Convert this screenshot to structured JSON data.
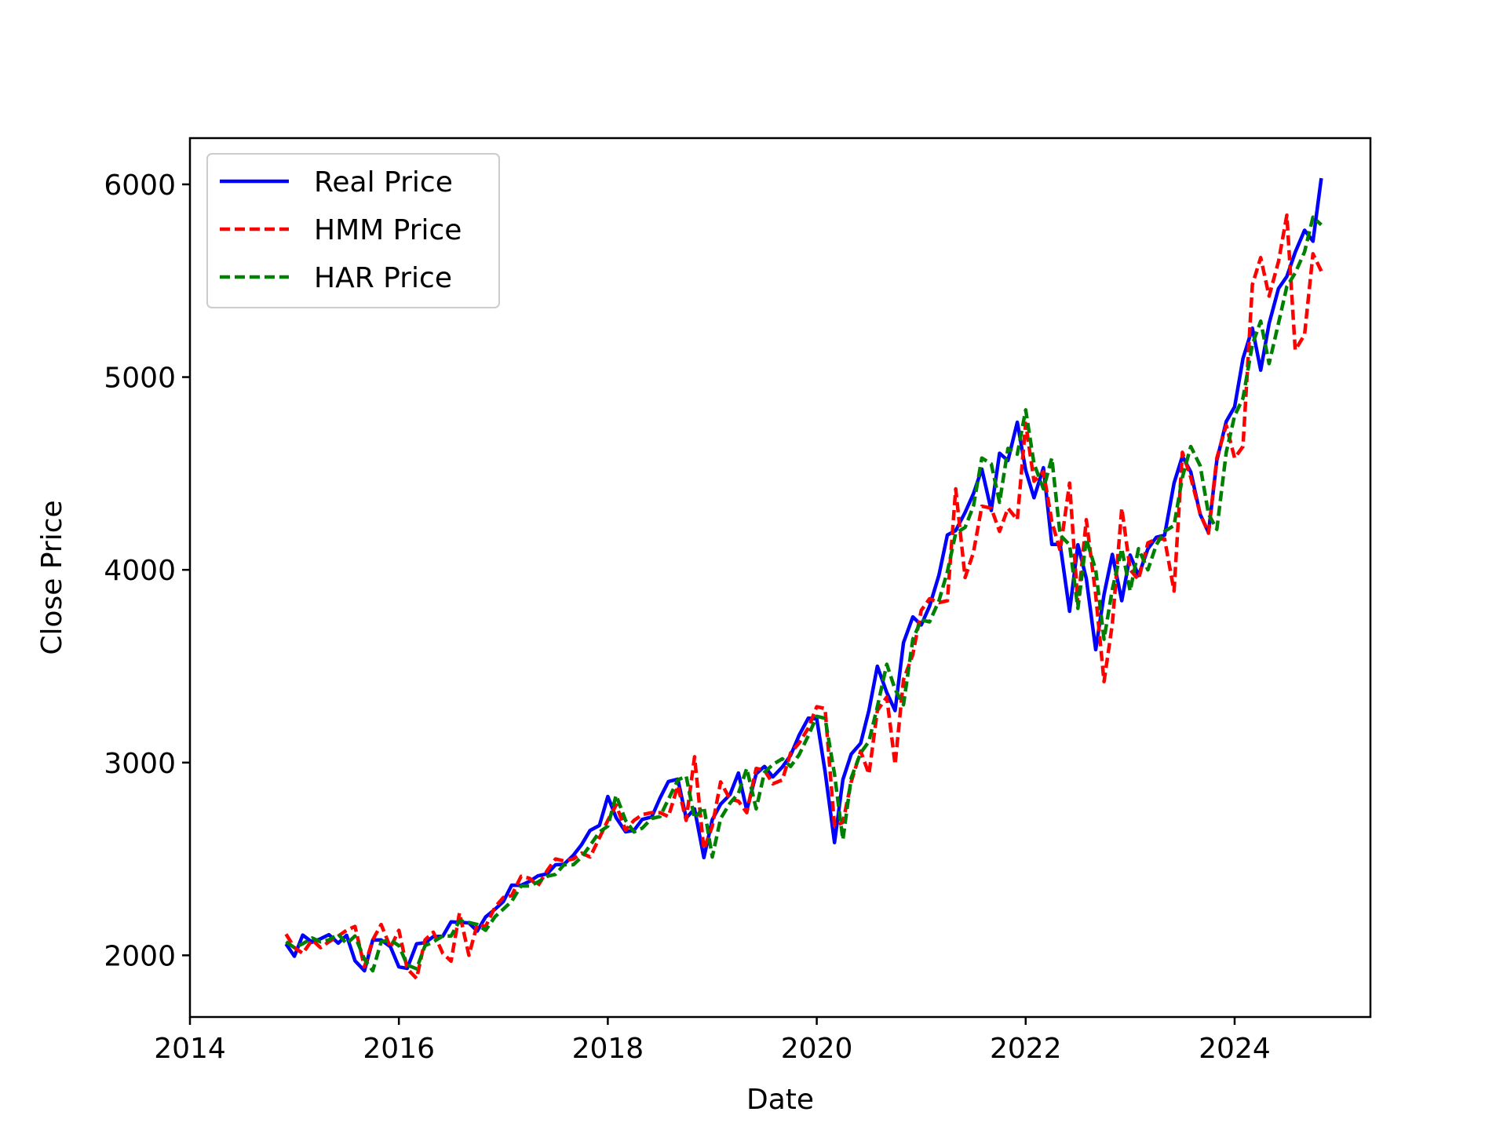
{
  "chart_data": {
    "type": "line",
    "title": "",
    "xlabel": "Date",
    "ylabel": "Close Price",
    "xlim": [
      2014.0,
      2025.3
    ],
    "ylim": [
      1680,
      6240
    ],
    "x_ticks": [
      2014,
      2016,
      2018,
      2020,
      2022,
      2024
    ],
    "y_ticks": [
      2000,
      3000,
      4000,
      5000,
      6000
    ],
    "grid": false,
    "legend": "upper-left",
    "x": [
      2014.92,
      2015.0,
      2015.08,
      2015.17,
      2015.25,
      2015.33,
      2015.42,
      2015.5,
      2015.58,
      2015.67,
      2015.75,
      2015.83,
      2015.92,
      2016.0,
      2016.08,
      2016.17,
      2016.25,
      2016.33,
      2016.42,
      2016.5,
      2016.58,
      2016.67,
      2016.75,
      2016.83,
      2016.92,
      2017.0,
      2017.08,
      2017.17,
      2017.25,
      2017.33,
      2017.42,
      2017.5,
      2017.58,
      2017.67,
      2017.75,
      2017.83,
      2017.92,
      2018.0,
      2018.08,
      2018.17,
      2018.25,
      2018.33,
      2018.42,
      2018.5,
      2018.58,
      2018.67,
      2018.75,
      2018.83,
      2018.92,
      2019.0,
      2019.08,
      2019.17,
      2019.25,
      2019.33,
      2019.42,
      2019.5,
      2019.58,
      2019.67,
      2019.75,
      2019.83,
      2019.92,
      2020.0,
      2020.08,
      2020.17,
      2020.25,
      2020.33,
      2020.42,
      2020.5,
      2020.58,
      2020.67,
      2020.75,
      2020.83,
      2020.92,
      2021.0,
      2021.08,
      2021.17,
      2021.25,
      2021.33,
      2021.42,
      2021.5,
      2021.58,
      2021.67,
      2021.75,
      2021.83,
      2021.92,
      2022.0,
      2022.08,
      2022.17,
      2022.25,
      2022.33,
      2022.42,
      2022.5,
      2022.58,
      2022.67,
      2022.75,
      2022.83,
      2022.92,
      2023.0,
      2023.08,
      2023.17,
      2023.25,
      2023.33,
      2023.42,
      2023.5,
      2023.58,
      2023.67,
      2023.75,
      2023.83,
      2023.92,
      2024.0,
      2024.08,
      2024.17,
      2024.25,
      2024.33,
      2024.42,
      2024.5,
      2024.58,
      2024.67,
      2024.75,
      2024.83
    ],
    "series": [
      {
        "name": "Real Price",
        "color": "#0000ff",
        "style": "solid",
        "values": [
          2059,
          1995,
          2105,
          2068,
          2086,
          2107,
          2063,
          2104,
          1972,
          1920,
          2079,
          2080,
          2044,
          1940,
          1932,
          2060,
          2065,
          2097,
          2099,
          2174,
          2171,
          2168,
          2126,
          2199,
          2239,
          2279,
          2364,
          2363,
          2384,
          2412,
          2423,
          2470,
          2472,
          2519,
          2575,
          2648,
          2674,
          2824,
          2714,
          2641,
          2648,
          2705,
          2718,
          2816,
          2902,
          2914,
          2712,
          2760,
          2507,
          2704,
          2784,
          2834,
          2946,
          2752,
          2942,
          2980,
          2926,
          2977,
          3038,
          3141,
          3231,
          3226,
          2954,
          2585,
          2912,
          3044,
          3100,
          3271,
          3500,
          3363,
          3270,
          3622,
          3756,
          3714,
          3811,
          3973,
          4181,
          4204,
          4298,
          4395,
          4523,
          4308,
          4605,
          4567,
          4766,
          4516,
          4374,
          4530,
          4132,
          4132,
          3785,
          4130,
          3955,
          3586,
          3872,
          4080,
          3840,
          4077,
          3970,
          4109,
          4169,
          4180,
          4450,
          4589,
          4508,
          4288,
          4194,
          4568,
          4770,
          4846,
          5096,
          5254,
          5036,
          5278,
          5460,
          5522,
          5648,
          5762,
          5705,
          6032
        ]
      },
      {
        "name": "HMM Price",
        "color": "#ff0000",
        "style": "dashed",
        "values": [
          2110,
          2040,
          2010,
          2080,
          2040,
          2070,
          2100,
          2130,
          2150,
          1940,
          2080,
          2160,
          2040,
          2130,
          1930,
          1880,
          2080,
          2120,
          2010,
          1970,
          2220,
          2000,
          2160,
          2150,
          2250,
          2300,
          2310,
          2410,
          2400,
          2360,
          2440,
          2500,
          2490,
          2500,
          2530,
          2510,
          2610,
          2700,
          2780,
          2650,
          2700,
          2730,
          2740,
          2740,
          2720,
          2880,
          2700,
          3030,
          2550,
          2670,
          2900,
          2810,
          2800,
          2740,
          2970,
          2960,
          2890,
          2910,
          3050,
          3100,
          3180,
          3290,
          3280,
          2670,
          2690,
          2900,
          3060,
          2940,
          3270,
          3340,
          2990,
          3430,
          3560,
          3790,
          3850,
          3830,
          3840,
          4420,
          3960,
          4090,
          4330,
          4320,
          4200,
          4320,
          4260,
          4760,
          4460,
          4510,
          4250,
          4100,
          4450,
          3820,
          4260,
          3870,
          3420,
          3720,
          4320,
          4000,
          3950,
          4140,
          4160,
          4160,
          3890,
          4610,
          4480,
          4290,
          4190,
          4580,
          4750,
          4580,
          4640,
          5480,
          5620,
          5420,
          5600,
          5840,
          5140,
          5220,
          5640,
          5550
        ]
      },
      {
        "name": "HAR Price",
        "color": "#008000",
        "style": "dashed",
        "values": [
          2070,
          2040,
          2060,
          2090,
          2070,
          2080,
          2110,
          2060,
          2100,
          1980,
          1920,
          2070,
          2080,
          2050,
          1950,
          1930,
          2050,
          2070,
          2100,
          2100,
          2180,
          2170,
          2160,
          2130,
          2200,
          2240,
          2280,
          2360,
          2360,
          2380,
          2410,
          2420,
          2470,
          2470,
          2510,
          2570,
          2640,
          2670,
          2830,
          2700,
          2640,
          2660,
          2710,
          2720,
          2810,
          2910,
          2930,
          2710,
          2770,
          2510,
          2710,
          2790,
          2840,
          2970,
          2760,
          2950,
          2990,
          3020,
          2980,
          3040,
          3140,
          3240,
          3230,
          2940,
          2600,
          2920,
          3050,
          3110,
          3290,
          3510,
          3380,
          3300,
          3640,
          3740,
          3730,
          3840,
          3990,
          4190,
          4220,
          4330,
          4580,
          4550,
          4350,
          4630,
          4600,
          4830,
          4550,
          4420,
          4580,
          4180,
          4130,
          3800,
          4160,
          4000,
          3640,
          3900,
          4110,
          3890,
          4110,
          4000,
          4130,
          4200,
          4230,
          4480,
          4640,
          4540,
          4290,
          4210,
          4610,
          4800,
          4890,
          5170,
          5290,
          5070,
          5280,
          5470,
          5540,
          5650,
          5830,
          5790
        ]
      }
    ]
  }
}
